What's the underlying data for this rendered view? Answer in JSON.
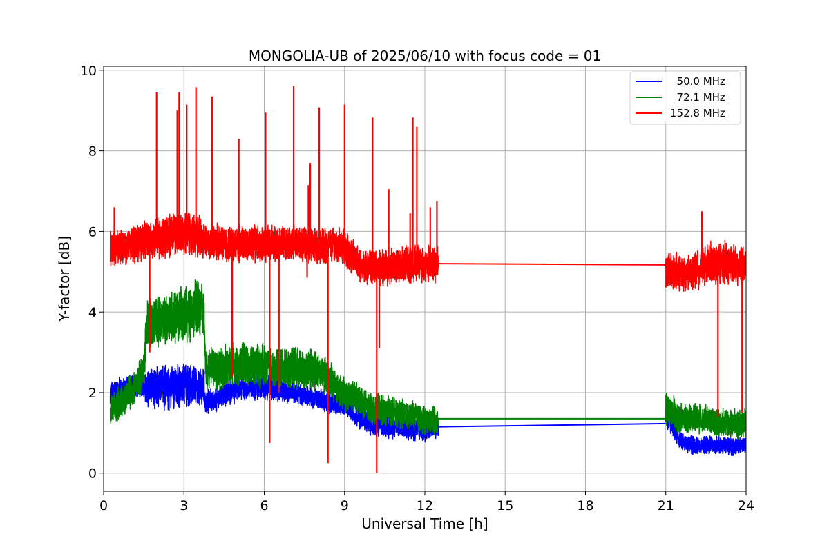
{
  "chart_data": {
    "type": "line",
    "title": "MONGOLIA-UB of 2025/06/10 with focus code = 01",
    "xlabel": "Universal Time [h]",
    "ylabel": "Y-factor [dB]",
    "xlim": [
      0,
      24
    ],
    "ylim": [
      -0.45,
      10.1
    ],
    "xticks": [
      "0",
      "3",
      "6",
      "9",
      "12",
      "15",
      "18",
      "21",
      "24"
    ],
    "yticks": [
      "0",
      "2",
      "4",
      "6",
      "8",
      "10"
    ],
    "grid": true,
    "legend_position": "top-right",
    "series": [
      {
        "name": "  50.0 MHz",
        "color": "#0000ff",
        "segments": [
          {
            "x": [
              0.25,
              0.6,
              1.0,
              1.5,
              1.6,
              2.0,
              2.5,
              3.0,
              3.5,
              3.75,
              3.8,
              4.2,
              5.0,
              6.0,
              6.5,
              7.0,
              8.0,
              8.5,
              9.0,
              9.5,
              10.0,
              10.5,
              11.0,
              11.5,
              12.0,
              12.5
            ],
            "y": [
              1.95,
              2.1,
              2.15,
              2.2,
              2.1,
              2.15,
              2.1,
              2.2,
              2.15,
              2.1,
              1.75,
              1.85,
              2.1,
              2.15,
              2.05,
              2.0,
              1.85,
              1.75,
              1.7,
              1.4,
              1.2,
              1.15,
              1.15,
              1.1,
              1.05,
              1.15
            ],
            "spread": [
              0.3,
              0.3,
              0.3,
              0.35,
              0.6,
              0.6,
              0.6,
              0.6,
              0.55,
              0.5,
              0.3,
              0.35,
              0.35,
              0.35,
              0.3,
              0.3,
              0.3,
              0.3,
              0.3,
              0.3,
              0.3,
              0.3,
              0.3,
              0.3,
              0.3,
              0.3
            ]
          },
          {
            "x": [
              21.0,
              21.3,
              21.5,
              22.0,
              22.5,
              23.0,
              23.5,
              24.0
            ],
            "y": [
              1.5,
              1.2,
              0.8,
              0.7,
              0.7,
              0.7,
              0.65,
              0.7
            ],
            "spread": [
              0.45,
              0.35,
              0.25,
              0.25,
              0.25,
              0.25,
              0.25,
              0.2
            ]
          }
        ],
        "connector": {
          "x": [
            12.5,
            21.0
          ],
          "y": [
            1.15,
            1.23
          ]
        }
      },
      {
        "name": "  72.1 MHz",
        "color": "#008000",
        "segments": [
          {
            "x": [
              0.25,
              0.6,
              1.0,
              1.5,
              1.6,
              2.0,
              2.5,
              3.0,
              3.5,
              3.75,
              3.8,
              4.2,
              5.0,
              6.0,
              6.5,
              7.0,
              8.0,
              8.5,
              9.0,
              9.5,
              10.0,
              10.5,
              11.0,
              11.5,
              12.0,
              12.5
            ],
            "y": [
              1.55,
              1.75,
              2.0,
              2.5,
              3.7,
              3.75,
              3.85,
              3.95,
              4.1,
              4.0,
              2.6,
              2.6,
              2.7,
              2.65,
              2.6,
              2.6,
              2.55,
              2.3,
              1.95,
              1.85,
              1.6,
              1.55,
              1.5,
              1.45,
              1.3,
              1.3
            ],
            "spread": [
              0.45,
              0.45,
              0.45,
              0.5,
              0.7,
              0.7,
              0.75,
              0.8,
              0.8,
              0.7,
              0.55,
              0.6,
              0.6,
              0.6,
              0.55,
              0.55,
              0.55,
              0.5,
              0.45,
              0.45,
              0.45,
              0.45,
              0.4,
              0.4,
              0.4,
              0.4
            ]
          },
          {
            "x": [
              21.0,
              21.3,
              21.5,
              22.0,
              22.5,
              23.0,
              23.5,
              24.0
            ],
            "y": [
              1.6,
              1.5,
              1.35,
              1.35,
              1.35,
              1.25,
              1.2,
              1.25
            ],
            "spread": [
              0.45,
              0.45,
              0.4,
              0.4,
              0.4,
              0.4,
              0.4,
              0.4
            ]
          }
        ],
        "connector": {
          "x": [
            12.5,
            21.0
          ],
          "y": [
            1.35,
            1.35
          ]
        }
      },
      {
        "name": "152.8 MHz",
        "color": "#ff0000",
        "segments": [
          {
            "x": [
              0.25,
              1.0,
              1.5,
              2.0,
              2.5,
              3.0,
              3.5,
              3.8,
              4.5,
              5.0,
              6.0,
              7.0,
              8.0,
              8.5,
              9.0,
              9.5,
              10.0,
              10.5,
              11.0,
              11.5,
              12.0,
              12.5
            ],
            "y": [
              5.6,
              5.65,
              5.75,
              5.85,
              5.9,
              5.95,
              5.9,
              5.75,
              5.7,
              5.7,
              5.7,
              5.7,
              5.65,
              5.65,
              5.6,
              5.2,
              5.1,
              5.1,
              5.15,
              5.2,
              5.2,
              5.2
            ],
            "spread": [
              0.5,
              0.5,
              0.55,
              0.6,
              0.6,
              0.6,
              0.6,
              0.5,
              0.5,
              0.5,
              0.5,
              0.5,
              0.5,
              0.5,
              0.5,
              0.5,
              0.5,
              0.5,
              0.5,
              0.5,
              0.5,
              0.5
            ]
          },
          {
            "x": [
              21.0,
              21.5,
              22.0,
              22.5,
              23.0,
              23.5,
              24.0
            ],
            "y": [
              5.0,
              4.95,
              4.95,
              5.2,
              5.2,
              5.2,
              5.15
            ],
            "spread": [
              0.55,
              0.55,
              0.5,
              0.6,
              0.6,
              0.6,
              0.55
            ]
          }
        ],
        "connector": {
          "x": [
            12.5,
            21.0
          ],
          "y": [
            5.2,
            5.17
          ]
        },
        "spikes": [
          {
            "x": 0.4,
            "y": 6.6
          },
          {
            "x": 1.98,
            "y": 9.45
          },
          {
            "x": 2.75,
            "y": 9.0
          },
          {
            "x": 2.82,
            "y": 9.45
          },
          {
            "x": 3.1,
            "y": 9.15
          },
          {
            "x": 3.45,
            "y": 9.58
          },
          {
            "x": 4.05,
            "y": 9.35
          },
          {
            "x": 5.05,
            "y": 8.3
          },
          {
            "x": 6.05,
            "y": 8.95
          },
          {
            "x": 7.1,
            "y": 9.62
          },
          {
            "x": 7.65,
            "y": 7.15
          },
          {
            "x": 7.72,
            "y": 7.7
          },
          {
            "x": 8.05,
            "y": 9.08
          },
          {
            "x": 9.0,
            "y": 9.15
          },
          {
            "x": 10.05,
            "y": 8.83
          },
          {
            "x": 10.65,
            "y": 7.05
          },
          {
            "x": 11.45,
            "y": 6.45
          },
          {
            "x": 11.55,
            "y": 8.83
          },
          {
            "x": 11.7,
            "y": 8.6
          },
          {
            "x": 12.2,
            "y": 6.6
          },
          {
            "x": 12.45,
            "y": 6.75
          },
          {
            "x": 22.35,
            "y": 6.5
          }
        ],
        "dips": [
          {
            "x": 1.72,
            "y": 3.0
          },
          {
            "x": 4.8,
            "y": 2.4
          },
          {
            "x": 6.2,
            "y": 0.75
          },
          {
            "x": 6.55,
            "y": 2.0
          },
          {
            "x": 7.6,
            "y": 4.85
          },
          {
            "x": 8.38,
            "y": 0.25
          },
          {
            "x": 10.2,
            "y": 0.0
          },
          {
            "x": 10.3,
            "y": 3.1
          },
          {
            "x": 22.95,
            "y": 1.4
          },
          {
            "x": 23.85,
            "y": 1.5
          }
        ]
      }
    ]
  }
}
